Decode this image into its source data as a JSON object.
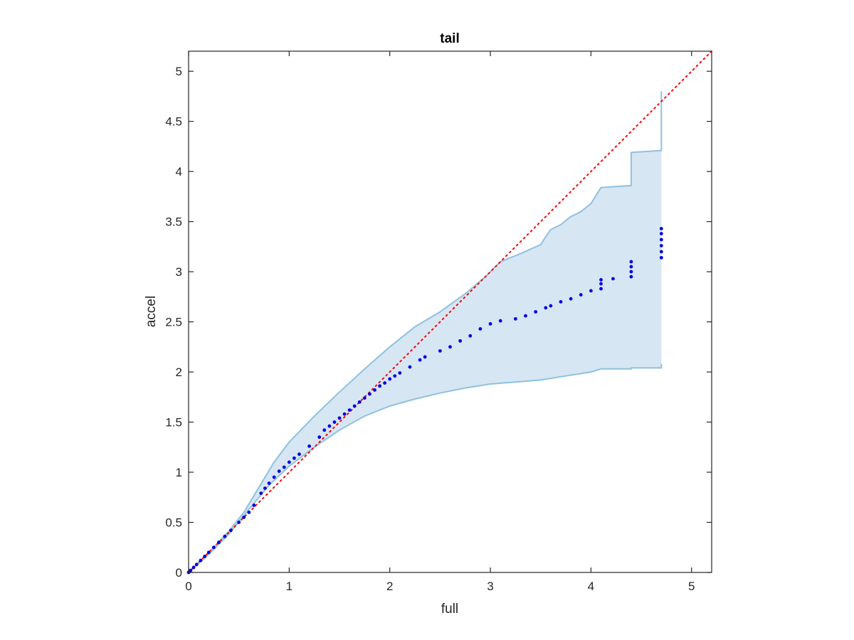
{
  "chart_data": {
    "type": "scatter",
    "title": "tail",
    "xlabel": "full",
    "ylabel": "accel",
    "xlim": [
      0,
      5.2
    ],
    "ylim": [
      0,
      5.2
    ],
    "xticks": [
      0,
      1,
      2,
      3,
      4,
      5
    ],
    "yticks": [
      0,
      0.5,
      1,
      1.5,
      2,
      2.5,
      3,
      3.5,
      4,
      4.5,
      5
    ],
    "xtick_labels": [
      "0",
      "1",
      "2",
      "3",
      "4",
      "5"
    ],
    "ytick_labels": [
      "0",
      "0.5",
      "1",
      "1.5",
      "2",
      "2.5",
      "3",
      "3.5",
      "4",
      "4.5",
      "5"
    ],
    "grid": false,
    "colors": {
      "points": "#0000e6",
      "band_fill": "#d6e6f3",
      "band_edge": "#8fc1df",
      "reference_line": "#ff0000",
      "axis": "#262626"
    },
    "reference_line": {
      "style": "dotted",
      "from": [
        0,
        0
      ],
      "to": [
        5.2,
        5.2
      ]
    },
    "band_upper": [
      [
        0,
        0
      ],
      [
        0.2,
        0.2
      ],
      [
        0.4,
        0.41
      ],
      [
        0.55,
        0.6
      ],
      [
        0.7,
        0.85
      ],
      [
        0.85,
        1.1
      ],
      [
        1.0,
        1.3
      ],
      [
        1.25,
        1.56
      ],
      [
        1.5,
        1.8
      ],
      [
        1.75,
        2.03
      ],
      [
        2.0,
        2.25
      ],
      [
        2.25,
        2.45
      ],
      [
        2.5,
        2.6
      ],
      [
        2.75,
        2.78
      ],
      [
        2.95,
        2.95
      ],
      [
        3.1,
        3.1
      ],
      [
        3.3,
        3.18
      ],
      [
        3.5,
        3.27
      ],
      [
        3.55,
        3.35
      ],
      [
        3.6,
        3.42
      ],
      [
        3.7,
        3.47
      ],
      [
        3.8,
        3.55
      ],
      [
        3.9,
        3.6
      ],
      [
        4.0,
        3.68
      ],
      [
        4.1,
        3.84
      ],
      [
        4.4,
        3.86
      ],
      [
        4.4,
        4.19
      ],
      [
        4.7,
        4.21
      ],
      [
        4.7,
        4.8
      ]
    ],
    "band_lower": [
      [
        0,
        0
      ],
      [
        0.2,
        0.18
      ],
      [
        0.4,
        0.38
      ],
      [
        0.6,
        0.63
      ],
      [
        0.8,
        0.87
      ],
      [
        1.0,
        1.06
      ],
      [
        1.25,
        1.25
      ],
      [
        1.5,
        1.42
      ],
      [
        1.75,
        1.56
      ],
      [
        2.0,
        1.66
      ],
      [
        2.25,
        1.73
      ],
      [
        2.5,
        1.79
      ],
      [
        2.75,
        1.84
      ],
      [
        3.0,
        1.88
      ],
      [
        3.25,
        1.9
      ],
      [
        3.5,
        1.92
      ],
      [
        3.75,
        1.96
      ],
      [
        4.0,
        2.0
      ],
      [
        4.1,
        2.03
      ],
      [
        4.4,
        2.03
      ],
      [
        4.4,
        2.04
      ],
      [
        4.7,
        2.04
      ],
      [
        4.7,
        2.08
      ]
    ],
    "points": [
      [
        0,
        0
      ],
      [
        0.02,
        0.02
      ],
      [
        0.05,
        0.05
      ],
      [
        0.08,
        0.08
      ],
      [
        0.12,
        0.12
      ],
      [
        0.16,
        0.16
      ],
      [
        0.2,
        0.2
      ],
      [
        0.25,
        0.25
      ],
      [
        0.3,
        0.3
      ],
      [
        0.36,
        0.36
      ],
      [
        0.42,
        0.42
      ],
      [
        0.5,
        0.5
      ],
      [
        0.55,
        0.55
      ],
      [
        0.6,
        0.6
      ],
      [
        0.65,
        0.67
      ],
      [
        0.72,
        0.79
      ],
      [
        0.76,
        0.84
      ],
      [
        0.8,
        0.89
      ],
      [
        0.85,
        0.95
      ],
      [
        0.9,
        1.01
      ],
      [
        0.95,
        1.05
      ],
      [
        1.0,
        1.1
      ],
      [
        1.05,
        1.14
      ],
      [
        1.1,
        1.18
      ],
      [
        1.2,
        1.26
      ],
      [
        1.3,
        1.35
      ],
      [
        1.35,
        1.42
      ],
      [
        1.4,
        1.46
      ],
      [
        1.45,
        1.5
      ],
      [
        1.5,
        1.54
      ],
      [
        1.55,
        1.58
      ],
      [
        1.6,
        1.62
      ],
      [
        1.65,
        1.66
      ],
      [
        1.7,
        1.7
      ],
      [
        1.75,
        1.74
      ],
      [
        1.8,
        1.78
      ],
      [
        1.85,
        1.82
      ],
      [
        1.9,
        1.86
      ],
      [
        1.95,
        1.89
      ],
      [
        2.0,
        1.93
      ],
      [
        2.05,
        1.96
      ],
      [
        2.1,
        1.99
      ],
      [
        2.2,
        2.05
      ],
      [
        2.3,
        2.12
      ],
      [
        2.35,
        2.15
      ],
      [
        2.5,
        2.21
      ],
      [
        2.6,
        2.25
      ],
      [
        2.7,
        2.31
      ],
      [
        2.8,
        2.36
      ],
      [
        2.9,
        2.43
      ],
      [
        3.0,
        2.48
      ],
      [
        3.1,
        2.51
      ],
      [
        3.25,
        2.53
      ],
      [
        3.35,
        2.56
      ],
      [
        3.45,
        2.6
      ],
      [
        3.55,
        2.64
      ],
      [
        3.6,
        2.66
      ],
      [
        3.7,
        2.7
      ],
      [
        3.8,
        2.73
      ],
      [
        3.9,
        2.77
      ],
      [
        4.0,
        2.81
      ],
      [
        4.1,
        2.83
      ],
      [
        4.1,
        2.88
      ],
      [
        4.1,
        2.92
      ],
      [
        4.22,
        2.93
      ],
      [
        4.4,
        2.95
      ],
      [
        4.4,
        3.0
      ],
      [
        4.4,
        3.05
      ],
      [
        4.4,
        3.1
      ],
      [
        4.7,
        3.14
      ],
      [
        4.7,
        3.2
      ],
      [
        4.7,
        3.26
      ],
      [
        4.7,
        3.32
      ],
      [
        4.7,
        3.38
      ],
      [
        4.7,
        3.43
      ]
    ]
  }
}
